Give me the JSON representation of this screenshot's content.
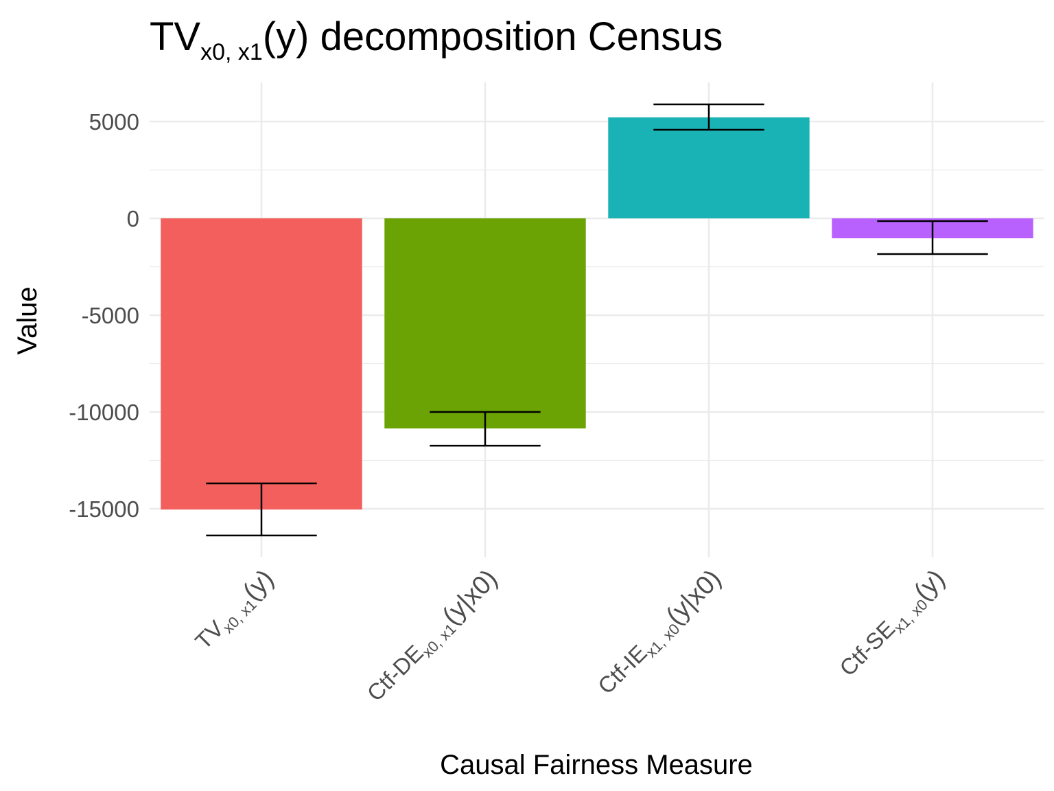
{
  "chart_data": {
    "type": "bar",
    "title": {
      "main": "TV",
      "sub": "x0, x1",
      "paren": "(y)",
      "rest": " decomposition Census"
    },
    "xlabel": "Causal Fairness Measure",
    "ylabel": "Value",
    "ylim": [
      -17500,
      7000
    ],
    "yticks": [
      5000,
      0,
      -5000,
      -10000,
      -15000
    ],
    "ytick_labels": [
      "5000",
      "0",
      "-5000",
      "-10000",
      "-15000"
    ],
    "grid": true,
    "legend": "none",
    "categories": [
      {
        "main": "TV",
        "sub": "x0, x1",
        "rest": "(y)"
      },
      {
        "main": "Ctf-DE",
        "sub": "x0, x1",
        "rest": "(y|x0)"
      },
      {
        "main": "Ctf-IE",
        "sub": "x1, x0",
        "rest": "(y|x0)"
      },
      {
        "main": "Ctf-SE",
        "sub": "x1, x0",
        "rest": "(y)"
      }
    ],
    "values": [
      -15035,
      -10850,
      5215,
      -1030
    ],
    "error_lower": [
      -16380,
      -11740,
      4575,
      -1845
    ],
    "error_upper": [
      -13690,
      -10000,
      5885,
      -140
    ],
    "colors": [
      "#F25F5C",
      "#6BA304",
      "#19B3B6",
      "#B961FE"
    ]
  }
}
